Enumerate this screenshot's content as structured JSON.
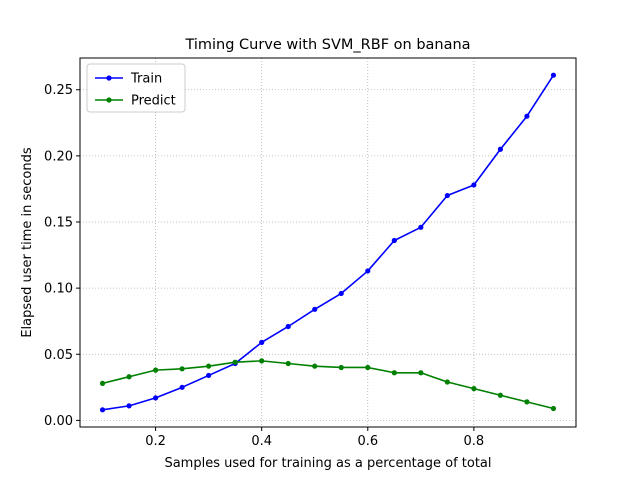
{
  "chart_data": {
    "type": "line",
    "title": "Timing Curve with SVM_RBF on banana",
    "xlabel": "Samples used for training as a percentage of total",
    "ylabel": "Elapsed user time in seconds",
    "xlim": [
      0.0575,
      0.9925
    ],
    "ylim": [
      -0.005,
      0.274
    ],
    "xticks": [
      0.2,
      0.4,
      0.6,
      0.8
    ],
    "xtick_labels": [
      "0.2",
      "0.4",
      "0.6",
      "0.8"
    ],
    "yticks": [
      0.0,
      0.05,
      0.1,
      0.15,
      0.2,
      0.25
    ],
    "ytick_labels": [
      "0.00",
      "0.05",
      "0.10",
      "0.15",
      "0.20",
      "0.25"
    ],
    "grid": true,
    "grid_style": "dotted",
    "legend_position": "upper-left",
    "x": [
      0.1,
      0.15,
      0.2,
      0.25,
      0.3,
      0.35,
      0.4,
      0.45,
      0.5,
      0.55,
      0.6,
      0.65,
      0.7,
      0.75,
      0.8,
      0.85,
      0.9,
      0.95
    ],
    "series": [
      {
        "name": "Train",
        "color": "#0000ff",
        "marker": "circle",
        "values": [
          0.008,
          0.011,
          0.017,
          0.025,
          0.034,
          0.043,
          0.059,
          0.071,
          0.084,
          0.096,
          0.113,
          0.136,
          0.146,
          0.17,
          0.178,
          0.205,
          0.23,
          0.261
        ]
      },
      {
        "name": "Predict",
        "color": "#008000",
        "marker": "circle",
        "values": [
          0.028,
          0.033,
          0.038,
          0.039,
          0.041,
          0.044,
          0.045,
          0.043,
          0.041,
          0.04,
          0.04,
          0.036,
          0.036,
          0.029,
          0.024,
          0.019,
          0.014,
          0.009
        ]
      }
    ]
  }
}
